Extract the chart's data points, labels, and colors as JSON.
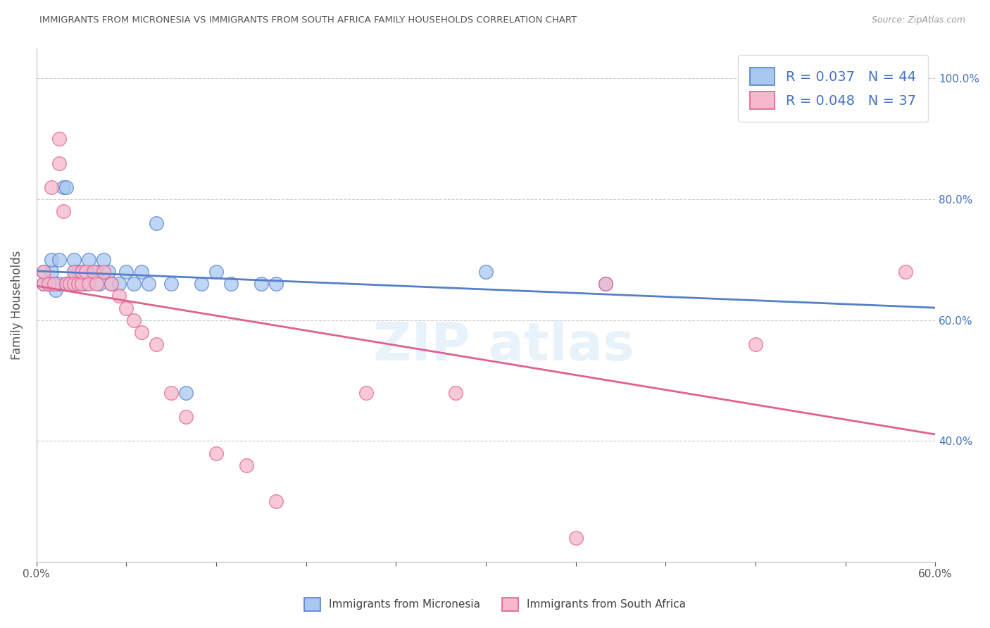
{
  "title": "IMMIGRANTS FROM MICRONESIA VS IMMIGRANTS FROM SOUTH AFRICA FAMILY HOUSEHOLDS CORRELATION CHART",
  "source": "Source: ZipAtlas.com",
  "ylabel": "Family Households",
  "right_yticks": [
    "40.0%",
    "60.0%",
    "80.0%",
    "100.0%"
  ],
  "right_ytick_vals": [
    0.4,
    0.6,
    0.8,
    1.0
  ],
  "xlim": [
    0.0,
    0.6
  ],
  "ylim": [
    0.2,
    1.05
  ],
  "blue_color": "#a8c8f0",
  "pink_color": "#f5b8cc",
  "blue_line_color": "#5580c8",
  "pink_line_color": "#e06090",
  "legend_R1": "R = 0.037",
  "legend_N1": "N = 44",
  "legend_R2": "R = 0.048",
  "legend_N2": "N = 37",
  "blue_x": [
    0.005,
    0.005,
    0.008,
    0.01,
    0.01,
    0.01,
    0.012,
    0.013,
    0.015,
    0.015,
    0.018,
    0.02,
    0.02,
    0.022,
    0.025,
    0.025,
    0.025,
    0.028,
    0.028,
    0.03,
    0.03,
    0.033,
    0.035,
    0.038,
    0.04,
    0.042,
    0.045,
    0.048,
    0.05,
    0.055,
    0.06,
    0.065,
    0.07,
    0.075,
    0.08,
    0.09,
    0.1,
    0.11,
    0.12,
    0.13,
    0.15,
    0.16,
    0.3,
    0.38
  ],
  "blue_y": [
    0.68,
    0.66,
    0.66,
    0.66,
    0.68,
    0.7,
    0.66,
    0.65,
    0.66,
    0.7,
    0.82,
    0.66,
    0.82,
    0.66,
    0.66,
    0.68,
    0.7,
    0.66,
    0.68,
    0.66,
    0.68,
    0.66,
    0.7,
    0.68,
    0.68,
    0.66,
    0.7,
    0.68,
    0.66,
    0.66,
    0.68,
    0.66,
    0.68,
    0.66,
    0.76,
    0.66,
    0.48,
    0.66,
    0.68,
    0.66,
    0.66,
    0.66,
    0.68,
    0.66
  ],
  "pink_x": [
    0.005,
    0.005,
    0.008,
    0.01,
    0.012,
    0.015,
    0.015,
    0.018,
    0.02,
    0.022,
    0.025,
    0.025,
    0.028,
    0.03,
    0.03,
    0.033,
    0.035,
    0.038,
    0.04,
    0.045,
    0.05,
    0.055,
    0.06,
    0.065,
    0.07,
    0.08,
    0.09,
    0.1,
    0.12,
    0.14,
    0.16,
    0.22,
    0.28,
    0.36,
    0.38,
    0.48,
    0.58
  ],
  "pink_y": [
    0.66,
    0.68,
    0.66,
    0.82,
    0.66,
    0.86,
    0.9,
    0.78,
    0.66,
    0.66,
    0.68,
    0.66,
    0.66,
    0.66,
    0.68,
    0.68,
    0.66,
    0.68,
    0.66,
    0.68,
    0.66,
    0.64,
    0.62,
    0.6,
    0.58,
    0.56,
    0.48,
    0.44,
    0.38,
    0.36,
    0.3,
    0.48,
    0.48,
    0.24,
    0.66,
    0.56,
    0.68
  ],
  "background_color": "#ffffff",
  "grid_color": "#cccccc"
}
